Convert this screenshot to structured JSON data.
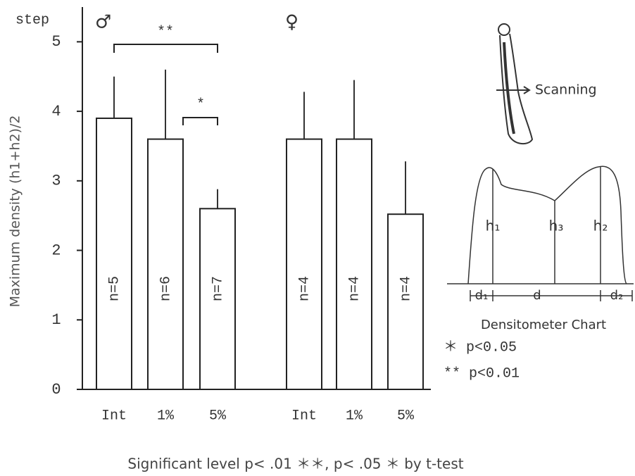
{
  "chart_data": {
    "type": "bar",
    "y_unit_label": "step",
    "ylabel": "Maximum density (h1+h2)/2",
    "categories": [
      "Int",
      "1%",
      "5%"
    ],
    "series": [
      {
        "name": "♂",
        "color": "#ffffff",
        "values": [
          3.9,
          3.6,
          2.6
        ],
        "errors": [
          0.6,
          1.0,
          0.28
        ],
        "n_labels": [
          "n=5",
          "n=6",
          "n=7"
        ]
      },
      {
        "name": "♀",
        "color": "#ffffff",
        "values": [
          3.6,
          3.6,
          2.52
        ],
        "errors": [
          0.68,
          0.85,
          0.76
        ],
        "n_labels": [
          "n=4",
          "n=4",
          "n=4"
        ]
      }
    ],
    "ylim": [
      0,
      5.5
    ],
    "yticks": [
      0,
      1,
      2,
      3,
      4,
      5
    ],
    "significance_brackets": [
      "**",
      "*"
    ],
    "significance_legend": [
      "＊ p<0.05",
      "** p<0.01"
    ],
    "footer": "Significant level p< .01 ＊＊, p< .05 ＊ by t-test",
    "inset": {
      "scanning": "Scanning",
      "h_labels": [
        "h₁",
        "h₃",
        "h₂"
      ],
      "d_labels": [
        "d₁",
        "d",
        "d₂"
      ],
      "caption": "Densitometer Chart"
    }
  }
}
